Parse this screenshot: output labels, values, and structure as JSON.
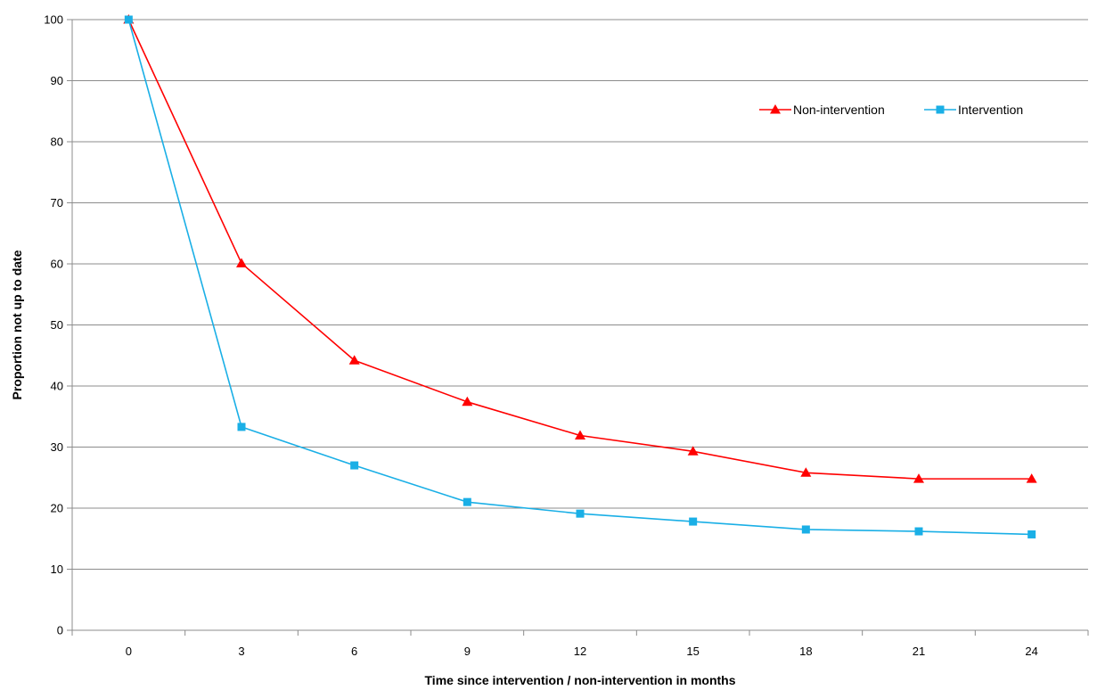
{
  "chart_data": {
    "type": "line",
    "title": "",
    "xlabel": "Time since intervention / non-intervention in months",
    "ylabel": "Proportion not up to date",
    "categories": [
      "0",
      "3",
      "6",
      "9",
      "12",
      "15",
      "18",
      "21",
      "24"
    ],
    "ylim": [
      0,
      100
    ],
    "yticks": [
      0,
      10,
      20,
      30,
      40,
      50,
      60,
      70,
      80,
      90,
      100
    ],
    "grid": "horizontal",
    "legend_position": "top-right",
    "series": [
      {
        "name": "Non-intervention",
        "color": "#ff0000",
        "marker": "triangle",
        "values": [
          100,
          60.1,
          44.2,
          37.4,
          31.9,
          29.3,
          25.8,
          24.8,
          24.8
        ]
      },
      {
        "name": "Intervention",
        "color": "#1aafe6",
        "marker": "square",
        "values": [
          100,
          33.3,
          27.0,
          21.0,
          19.1,
          17.8,
          16.5,
          16.2,
          15.7
        ]
      }
    ]
  }
}
